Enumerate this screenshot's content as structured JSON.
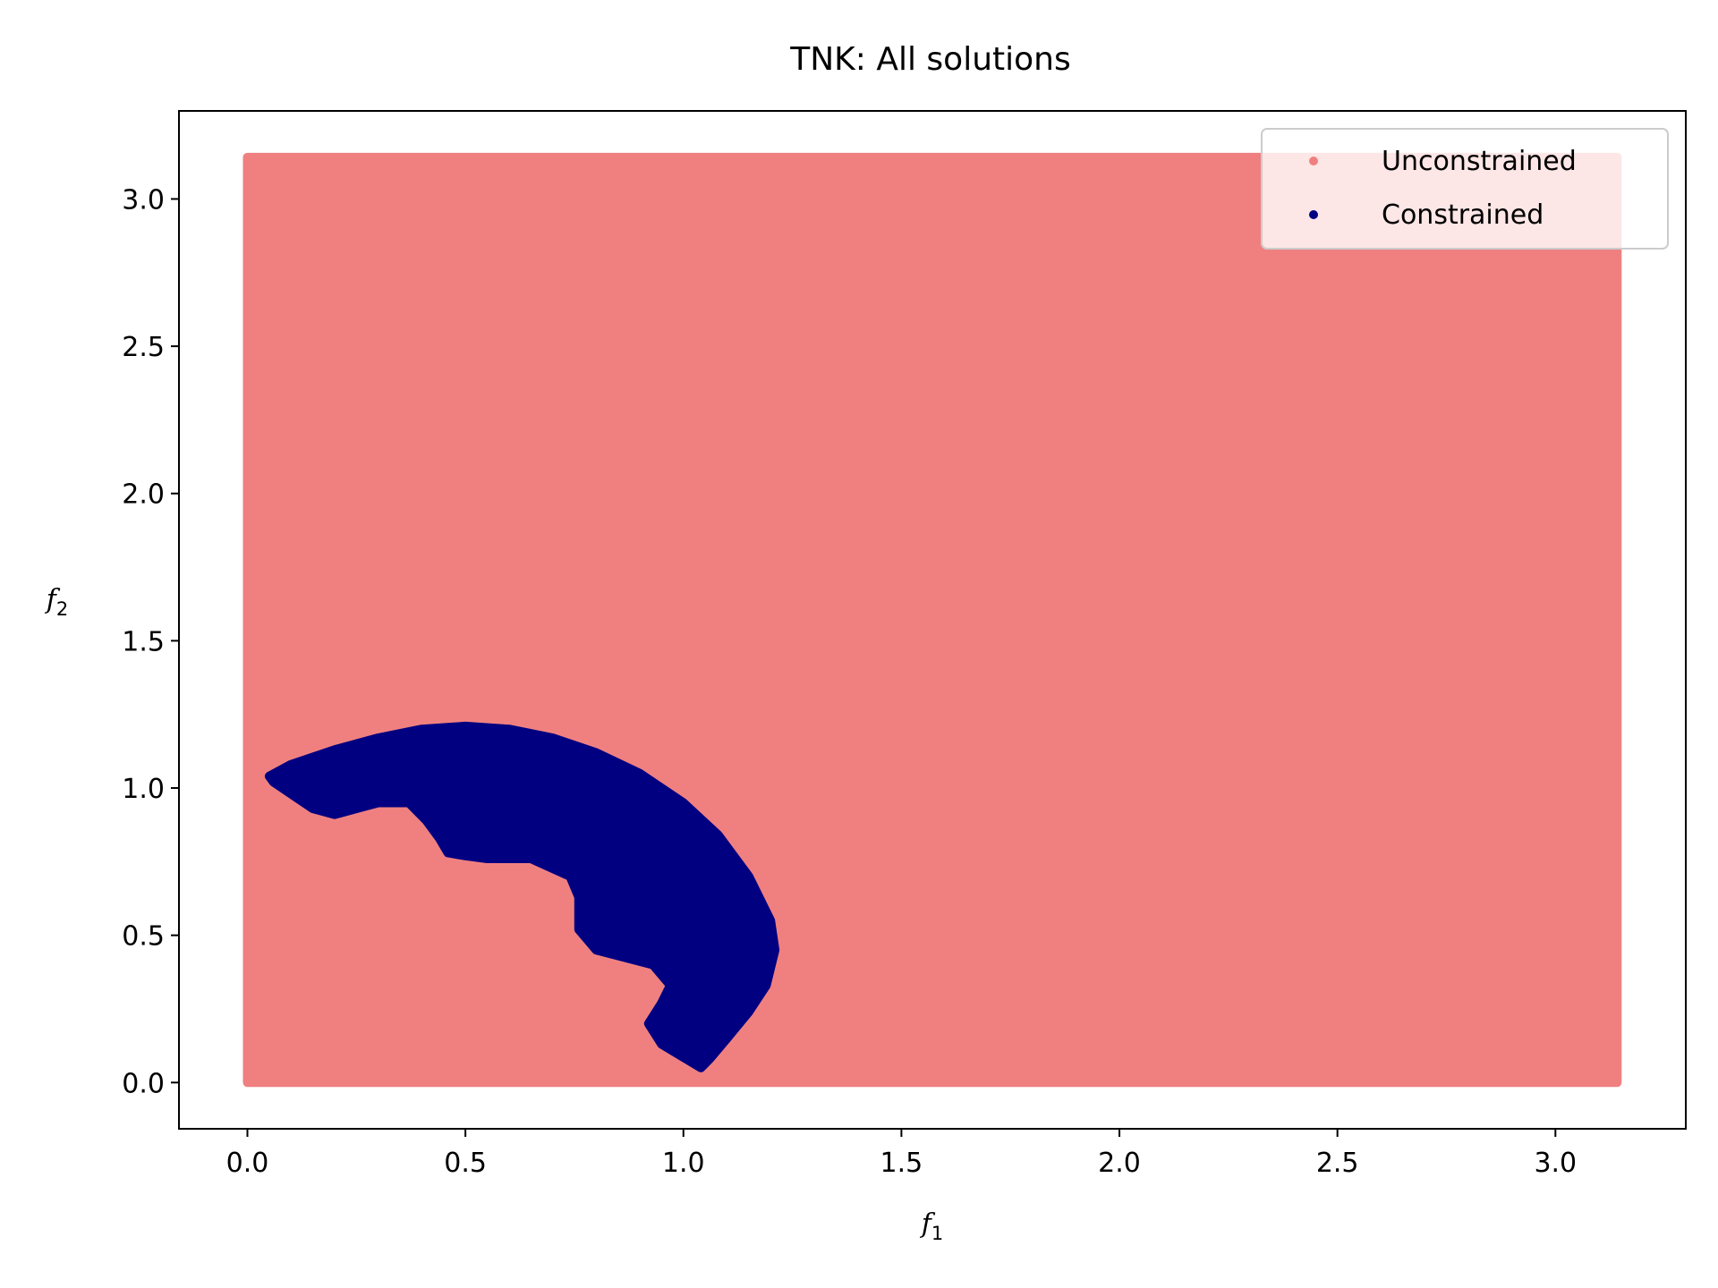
{
  "chart_data": {
    "type": "scatter",
    "title": "TNK: All solutions",
    "xlabel": {
      "base": "f",
      "sub": "1"
    },
    "ylabel": {
      "base": "f",
      "sub": "2"
    },
    "xlim": [
      -0.157,
      3.299
    ],
    "ylim": [
      -0.157,
      3.299
    ],
    "xticks": [
      0.0,
      0.5,
      1.0,
      1.5,
      2.0,
      2.5,
      3.0
    ],
    "yticks": [
      0.0,
      0.5,
      1.0,
      1.5,
      2.0,
      2.5,
      3.0
    ],
    "xtick_labels": [
      "0.0",
      "0.5",
      "1.0",
      "1.5",
      "2.0",
      "2.5",
      "3.0"
    ],
    "ytick_labels": [
      "0.0",
      "0.5",
      "1.0",
      "1.5",
      "2.0",
      "2.5",
      "3.0"
    ],
    "grid": false,
    "legend_position": "top-right",
    "series": [
      {
        "name": "Unconstrained",
        "color": "#f08080",
        "x_range": [
          0.0,
          3.1416
        ],
        "y_range": [
          0.0,
          3.1416
        ],
        "description": "uniform grid covering the full decision square"
      },
      {
        "name": "Constrained",
        "color": "#000080",
        "outer_boundary": [
          [
            0.05,
            1.04
          ],
          [
            0.1,
            1.08
          ],
          [
            0.2,
            1.13
          ],
          [
            0.3,
            1.17
          ],
          [
            0.4,
            1.2
          ],
          [
            0.5,
            1.21
          ],
          [
            0.6,
            1.2
          ],
          [
            0.7,
            1.17
          ],
          [
            0.8,
            1.12
          ],
          [
            0.9,
            1.05
          ],
          [
            1.0,
            0.95
          ],
          [
            1.08,
            0.84
          ],
          [
            1.15,
            0.7
          ],
          [
            1.2,
            0.55
          ],
          [
            1.21,
            0.45
          ],
          [
            1.19,
            0.33
          ],
          [
            1.15,
            0.24
          ],
          [
            1.1,
            0.15
          ],
          [
            1.06,
            0.08
          ],
          [
            1.04,
            0.05
          ]
        ],
        "inner_boundary": [
          [
            0.95,
            0.13
          ],
          [
            0.92,
            0.2
          ],
          [
            0.95,
            0.27
          ],
          [
            0.97,
            0.33
          ],
          [
            0.93,
            0.4
          ],
          [
            0.8,
            0.45
          ],
          [
            0.76,
            0.52
          ],
          [
            0.76,
            0.63
          ],
          [
            0.74,
            0.7
          ],
          [
            0.65,
            0.76
          ],
          [
            0.55,
            0.76
          ],
          [
            0.5,
            0.77
          ],
          [
            0.46,
            0.78
          ],
          [
            0.44,
            0.83
          ],
          [
            0.41,
            0.89
          ],
          [
            0.37,
            0.95
          ],
          [
            0.3,
            0.95
          ],
          [
            0.25,
            0.93
          ],
          [
            0.2,
            0.91
          ],
          [
            0.15,
            0.93
          ],
          [
            0.1,
            0.98
          ],
          [
            0.06,
            1.02
          ]
        ]
      }
    ]
  }
}
